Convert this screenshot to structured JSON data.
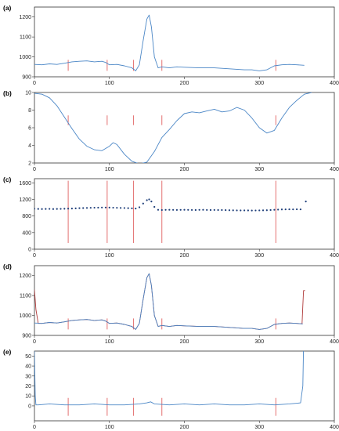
{
  "colors": {
    "blue": "#4a86c6",
    "red": "#e06060",
    "darkred": "#b03a3a",
    "navy": "#1f3f7a"
  },
  "chart_data": [
    {
      "panel_label": "(a)",
      "type": "line",
      "xlim": [
        0,
        400
      ],
      "ylim": [
        900,
        1250
      ],
      "xticks": [
        0,
        100,
        200,
        300,
        400
      ],
      "yticks": [
        900,
        1000,
        1100,
        1200
      ],
      "series": [
        {
          "color": "#4a86c6",
          "x": [
            0,
            10,
            20,
            30,
            40,
            50,
            60,
            70,
            80,
            90,
            95,
            100,
            110,
            120,
            130,
            135,
            140,
            145,
            150,
            153,
            156,
            160,
            165,
            170,
            180,
            190,
            200,
            220,
            240,
            260,
            280,
            290,
            300,
            310,
            320,
            330,
            340,
            350,
            360
          ],
          "y": [
            962,
            960,
            965,
            962,
            968,
            975,
            978,
            980,
            975,
            978,
            972,
            960,
            962,
            955,
            945,
            930,
            960,
            1080,
            1190,
            1210,
            1150,
            1000,
            945,
            950,
            945,
            950,
            948,
            945,
            945,
            940,
            935,
            935,
            930,
            935,
            955,
            960,
            962,
            960,
            958
          ]
        }
      ],
      "markers": {
        "color": "#e06060",
        "x": [
          45,
          97,
          132,
          170,
          322
        ],
        "y0": 930,
        "y1": 985
      }
    },
    {
      "panel_label": "(b)",
      "type": "line",
      "xlim": [
        0,
        400
      ],
      "ylim": [
        2,
        10
      ],
      "xticks": [
        0,
        100,
        200,
        300,
        400
      ],
      "yticks": [
        2,
        4,
        6,
        8,
        10
      ],
      "series": [
        {
          "color": "#4a86c6",
          "x": [
            0,
            10,
            20,
            30,
            40,
            50,
            60,
            70,
            80,
            90,
            100,
            105,
            110,
            120,
            130,
            140,
            150,
            160,
            170,
            180,
            190,
            200,
            210,
            220,
            230,
            240,
            250,
            260,
            270,
            280,
            290,
            300,
            310,
            320,
            330,
            340,
            350,
            360,
            370
          ],
          "y": [
            9.9,
            9.8,
            9.4,
            8.5,
            7.2,
            5.9,
            4.7,
            3.9,
            3.5,
            3.4,
            3.9,
            4.3,
            4.1,
            3.0,
            2.2,
            1.9,
            2.1,
            3.3,
            4.9,
            5.8,
            6.8,
            7.6,
            7.8,
            7.7,
            7.9,
            8.1,
            7.8,
            7.9,
            8.3,
            8.0,
            7.1,
            6.0,
            5.4,
            5.7,
            7.1,
            8.3,
            9.1,
            9.8,
            10.0
          ]
        }
      ],
      "markers": {
        "color": "#e06060",
        "x": [
          45,
          97,
          132,
          170,
          322
        ],
        "y0": 6.3,
        "y1": 7.4
      }
    },
    {
      "panel_label": "(c)",
      "type": "scatter",
      "xlim": [
        0,
        400
      ],
      "ylim": [
        0,
        1700
      ],
      "xticks": [
        0,
        100,
        200,
        300,
        400
      ],
      "yticks": [
        0,
        400,
        800,
        1200,
        1600
      ],
      "series": [
        {
          "color": "#1f3f7a",
          "x": [
            0,
            5,
            10,
            15,
            20,
            25,
            30,
            35,
            40,
            45,
            50,
            55,
            60,
            65,
            70,
            75,
            80,
            85,
            90,
            95,
            100,
            105,
            110,
            115,
            120,
            125,
            130,
            135,
            140,
            145,
            150,
            153,
            156,
            160,
            165,
            170,
            175,
            180,
            185,
            190,
            195,
            200,
            205,
            210,
            215,
            220,
            225,
            230,
            235,
            240,
            245,
            250,
            255,
            260,
            265,
            270,
            275,
            280,
            285,
            290,
            295,
            300,
            305,
            310,
            315,
            320,
            325,
            330,
            335,
            340,
            345,
            350,
            355,
            362
          ],
          "y": [
            975,
            970,
            968,
            970,
            972,
            968,
            970,
            972,
            975,
            978,
            980,
            985,
            990,
            992,
            995,
            998,
            1000,
            1002,
            1005,
            1005,
            1003,
            1000,
            998,
            995,
            993,
            990,
            985,
            980,
            1010,
            1100,
            1180,
            1200,
            1150,
            1020,
            950,
            945,
            948,
            950,
            948,
            946,
            948,
            950,
            948,
            946,
            945,
            948,
            950,
            946,
            944,
            946,
            945,
            944,
            942,
            940,
            938,
            936,
            935,
            936,
            935,
            933,
            934,
            936,
            938,
            940,
            945,
            950,
            955,
            958,
            960,
            962,
            960,
            962,
            960,
            1150
          ]
        }
      ],
      "markers": {
        "color": "#e06060",
        "x": [
          45,
          97,
          132,
          170,
          322
        ],
        "y0": 150,
        "y1": 1650
      }
    },
    {
      "panel_label": "(d)",
      "type": "line",
      "xlim": [
        0,
        400
      ],
      "ylim": [
        900,
        1250
      ],
      "xticks": [
        0,
        100,
        200,
        300,
        400
      ],
      "yticks": [
        900,
        1000,
        1100,
        1200
      ],
      "series": [
        {
          "color": "#b03a3a",
          "x": [
            0,
            2,
            5,
            10,
            20,
            30,
            40,
            50,
            60,
            70,
            80,
            90,
            95,
            100,
            110,
            120,
            130,
            135,
            140,
            145,
            150,
            153,
            156,
            160,
            165,
            170,
            180,
            190,
            200,
            220,
            240,
            260,
            280,
            290,
            300,
            310,
            320,
            330,
            340,
            350,
            357,
            358,
            359,
            361
          ],
          "y": [
            1130,
            1030,
            960,
            960,
            965,
            962,
            968,
            975,
            978,
            980,
            975,
            978,
            972,
            960,
            962,
            955,
            945,
            930,
            960,
            1080,
            1190,
            1210,
            1150,
            1000,
            945,
            950,
            945,
            950,
            948,
            945,
            945,
            940,
            935,
            935,
            930,
            935,
            955,
            960,
            962,
            960,
            958,
            1050,
            1125,
            1125
          ]
        },
        {
          "color": "#4a86c6",
          "x": [
            0,
            10,
            20,
            30,
            40,
            50,
            60,
            70,
            80,
            90,
            95,
            100,
            110,
            120,
            130,
            135,
            140,
            145,
            150,
            153,
            156,
            160,
            165,
            170,
            180,
            190,
            200,
            220,
            240,
            260,
            280,
            290,
            300,
            310,
            320,
            330,
            340,
            350,
            358
          ],
          "y": [
            962,
            960,
            965,
            962,
            968,
            975,
            978,
            980,
            975,
            978,
            972,
            960,
            962,
            955,
            945,
            930,
            960,
            1080,
            1190,
            1210,
            1150,
            1000,
            945,
            950,
            945,
            950,
            948,
            945,
            945,
            940,
            935,
            935,
            930,
            935,
            955,
            960,
            962,
            960,
            958
          ]
        }
      ],
      "markers": {
        "color": "#e06060",
        "x": [
          45,
          97,
          132,
          170,
          322
        ],
        "y0": 930,
        "y1": 985
      }
    },
    {
      "panel_label": "(e)",
      "type": "line",
      "xlim": [
        0,
        400
      ],
      "ylim": [
        -15,
        55
      ],
      "xticks": [
        0,
        100,
        200,
        300,
        400
      ],
      "yticks": [
        0,
        10,
        20,
        30,
        40,
        50
      ],
      "series": [
        {
          "color": "#4a86c6",
          "x": [
            0,
            1,
            2,
            5,
            20,
            40,
            60,
            80,
            100,
            120,
            140,
            150,
            155,
            160,
            180,
            200,
            220,
            240,
            260,
            280,
            300,
            320,
            340,
            355,
            358,
            359,
            360,
            361
          ],
          "y": [
            55,
            10,
            1,
            1,
            2,
            1,
            1,
            2,
            1,
            1,
            2,
            3,
            4,
            2,
            1,
            2,
            1,
            2,
            1,
            1,
            2,
            1,
            2,
            3,
            20,
            60,
            60,
            60
          ]
        }
      ],
      "markers": {
        "color": "#e06060",
        "x": [
          45,
          97,
          132,
          170,
          322
        ],
        "y0": -10,
        "y1": 8
      }
    }
  ]
}
